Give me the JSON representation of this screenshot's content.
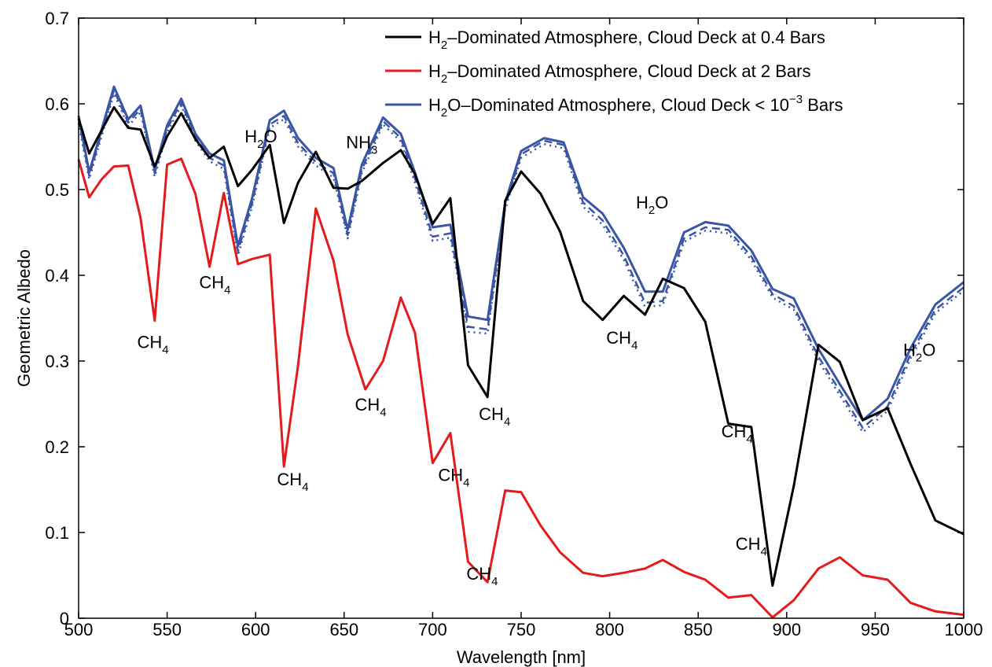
{
  "chart_data": {
    "type": "line",
    "xlabel": "Wavelength [nm]",
    "ylabel": "Geometric Albedo",
    "xlim": [
      500,
      1000
    ],
    "ylim": [
      0,
      0.7
    ],
    "xticks": [
      500,
      550,
      600,
      650,
      700,
      750,
      800,
      850,
      900,
      950,
      1000
    ],
    "yticks": [
      0,
      0.1,
      0.2,
      0.3,
      0.4,
      0.5,
      0.6,
      0.7
    ],
    "grid": false,
    "legend_position": "top-right",
    "series": [
      {
        "name": "H2–Dominated Atmosphere, Cloud Deck at 0.4 Bars",
        "legend": {
          "pre": "H",
          "sub": "2",
          "post": "–Dominated Atmosphere, Cloud Deck at 0.4 Bars"
        },
        "color": "#000000",
        "style": "solid",
        "x": [
          500,
          506,
          520,
          528,
          535,
          543,
          550,
          558,
          566,
          574,
          582,
          590,
          598,
          608,
          616,
          624,
          634,
          644,
          652,
          660,
          672,
          682,
          690,
          700,
          710,
          720,
          731,
          741,
          750,
          761,
          772,
          785,
          796,
          808,
          820,
          830,
          842,
          854,
          867,
          880,
          892,
          904,
          918,
          930,
          943,
          957,
          970,
          984,
          1000
        ],
        "y": [
          0.583,
          0.542,
          0.596,
          0.572,
          0.57,
          0.527,
          0.562,
          0.589,
          0.559,
          0.537,
          0.55,
          0.504,
          0.523,
          0.552,
          0.461,
          0.508,
          0.544,
          0.502,
          0.501,
          0.51,
          0.531,
          0.546,
          0.518,
          0.46,
          0.49,
          0.295,
          0.258,
          0.487,
          0.521,
          0.495,
          0.451,
          0.37,
          0.348,
          0.376,
          0.354,
          0.396,
          0.385,
          0.346,
          0.227,
          0.223,
          0.038,
          0.154,
          0.319,
          0.299,
          0.231,
          0.245,
          0.18,
          0.114,
          0.098
        ]
      },
      {
        "name": "H2–Dominated Atmosphere, Cloud Deck at 2 Bars",
        "legend": {
          "pre": "H",
          "sub": "2",
          "post": "–Dominated Atmosphere, Cloud Deck at 2 Bars"
        },
        "color": "#e41a1c",
        "style": "solid",
        "x": [
          500,
          506,
          513,
          520,
          528,
          535,
          543,
          550,
          558,
          566,
          574,
          582,
          590,
          598,
          608,
          616,
          624,
          634,
          644,
          652,
          662,
          672,
          682,
          690,
          700,
          710,
          720,
          731,
          741,
          750,
          761,
          772,
          785,
          796,
          808,
          820,
          830,
          842,
          854,
          867,
          880,
          892,
          904,
          918,
          930,
          943,
          957,
          970,
          984,
          1000
        ],
        "y": [
          0.535,
          0.491,
          0.512,
          0.527,
          0.528,
          0.467,
          0.347,
          0.529,
          0.536,
          0.495,
          0.41,
          0.496,
          0.413,
          0.419,
          0.424,
          0.177,
          0.295,
          0.478,
          0.417,
          0.331,
          0.267,
          0.3,
          0.374,
          0.333,
          0.181,
          0.216,
          0.066,
          0.042,
          0.149,
          0.147,
          0.108,
          0.077,
          0.053,
          0.049,
          0.053,
          0.058,
          0.068,
          0.054,
          0.045,
          0.024,
          0.027,
          0.001,
          0.021,
          0.058,
          0.071,
          0.05,
          0.045,
          0.018,
          0.008,
          0.004
        ]
      },
      {
        "name": "H2O–Dominated Atmosphere, Cloud Deck < 10−3 Bars",
        "legend": {
          "pre": "H",
          "sub": "2",
          "post": "O–Dominated Atmosphere, Cloud Deck < 10",
          "sup": "−3",
          "post2": " Bars"
        },
        "color": "#3a55a4",
        "style": "solid",
        "x": [
          500,
          506,
          520,
          528,
          535,
          543,
          550,
          558,
          566,
          574,
          582,
          590,
          598,
          608,
          616,
          624,
          634,
          644,
          652,
          660,
          672,
          682,
          690,
          700,
          710,
          720,
          731,
          741,
          750,
          763,
          774,
          785,
          796,
          808,
          820,
          830,
          842,
          854,
          867,
          880,
          892,
          904,
          918,
          930,
          943,
          957,
          970,
          984,
          1000
        ],
        "y": [
          0.586,
          0.52,
          0.62,
          0.582,
          0.598,
          0.523,
          0.575,
          0.606,
          0.565,
          0.542,
          0.534,
          0.434,
          0.49,
          0.581,
          0.592,
          0.56,
          0.537,
          0.525,
          0.453,
          0.529,
          0.584,
          0.565,
          0.52,
          0.456,
          0.459,
          0.352,
          0.348,
          0.485,
          0.545,
          0.56,
          0.555,
          0.491,
          0.472,
          0.432,
          0.381,
          0.381,
          0.45,
          0.462,
          0.458,
          0.429,
          0.384,
          0.373,
          0.314,
          0.273,
          0.231,
          0.256,
          0.315,
          0.366,
          0.392
        ]
      },
      {
        "color": "#3a55a4",
        "style": "dashed",
        "x": [
          500,
          506,
          520,
          528,
          535,
          543,
          550,
          558,
          566,
          574,
          582,
          590,
          598,
          608,
          616,
          624,
          634,
          644,
          652,
          660,
          672,
          682,
          690,
          700,
          710,
          720,
          731,
          741,
          750,
          763,
          774,
          785,
          796,
          808,
          820,
          830,
          842,
          854,
          867,
          880,
          892,
          904,
          918,
          930,
          943,
          957,
          970,
          984,
          1000
        ],
        "y": [
          0.582,
          0.516,
          0.616,
          0.578,
          0.594,
          0.519,
          0.571,
          0.602,
          0.561,
          0.537,
          0.528,
          0.428,
          0.484,
          0.576,
          0.586,
          0.554,
          0.532,
          0.519,
          0.447,
          0.523,
          0.58,
          0.56,
          0.513,
          0.445,
          0.449,
          0.34,
          0.337,
          0.481,
          0.541,
          0.557,
          0.552,
          0.485,
          0.464,
          0.423,
          0.368,
          0.37,
          0.443,
          0.456,
          0.453,
          0.422,
          0.378,
          0.364,
          0.305,
          0.265,
          0.222,
          0.247,
          0.308,
          0.36,
          0.386
        ]
      },
      {
        "color": "#3a55a4",
        "style": "dotted",
        "x": [
          500,
          506,
          520,
          528,
          535,
          543,
          550,
          558,
          566,
          574,
          582,
          590,
          598,
          608,
          616,
          624,
          634,
          644,
          652,
          660,
          672,
          682,
          690,
          700,
          710,
          720,
          731,
          741,
          750,
          763,
          774,
          785,
          796,
          808,
          820,
          830,
          842,
          854,
          867,
          880,
          892,
          904,
          918,
          930,
          943,
          957,
          970,
          984,
          1000
        ],
        "y": [
          0.578,
          0.512,
          0.612,
          0.574,
          0.59,
          0.515,
          0.567,
          0.598,
          0.557,
          0.533,
          0.524,
          0.423,
          0.48,
          0.572,
          0.582,
          0.55,
          0.528,
          0.514,
          0.443,
          0.519,
          0.576,
          0.556,
          0.508,
          0.44,
          0.444,
          0.334,
          0.332,
          0.477,
          0.537,
          0.553,
          0.548,
          0.48,
          0.459,
          0.418,
          0.363,
          0.365,
          0.439,
          0.452,
          0.449,
          0.418,
          0.374,
          0.36,
          0.3,
          0.26,
          0.217,
          0.242,
          0.303,
          0.356,
          0.382
        ]
      }
    ],
    "annotations": [
      {
        "pre": "CH",
        "sub": "4",
        "x": 542,
        "y": 0.315
      },
      {
        "pre": "CH",
        "sub": "4",
        "x": 577,
        "y": 0.385
      },
      {
        "pre": "H",
        "sub": "2",
        "post": "O",
        "x": 603,
        "y": 0.555
      },
      {
        "pre": "NH",
        "sub": "3",
        "x": 660,
        "y": 0.548
      },
      {
        "pre": "CH",
        "sub": "4",
        "x": 621,
        "y": 0.155
      },
      {
        "pre": "CH",
        "sub": "4",
        "x": 665,
        "y": 0.242
      },
      {
        "pre": "CH",
        "sub": "4",
        "x": 712,
        "y": 0.16
      },
      {
        "pre": "CH",
        "sub": "4",
        "x": 735,
        "y": 0.231
      },
      {
        "pre": "CH",
        "sub": "4",
        "x": 728,
        "y": 0.045
      },
      {
        "pre": "CH",
        "sub": "4",
        "x": 807,
        "y": 0.32
      },
      {
        "pre": "H",
        "sub": "2",
        "post": "O",
        "x": 824,
        "y": 0.478
      },
      {
        "pre": "CH",
        "sub": "4",
        "x": 872,
        "y": 0.211
      },
      {
        "pre": "CH",
        "sub": "4",
        "x": 880,
        "y": 0.08
      },
      {
        "pre": "H",
        "sub": "2",
        "post": "O",
        "x": 975,
        "y": 0.306
      }
    ]
  }
}
